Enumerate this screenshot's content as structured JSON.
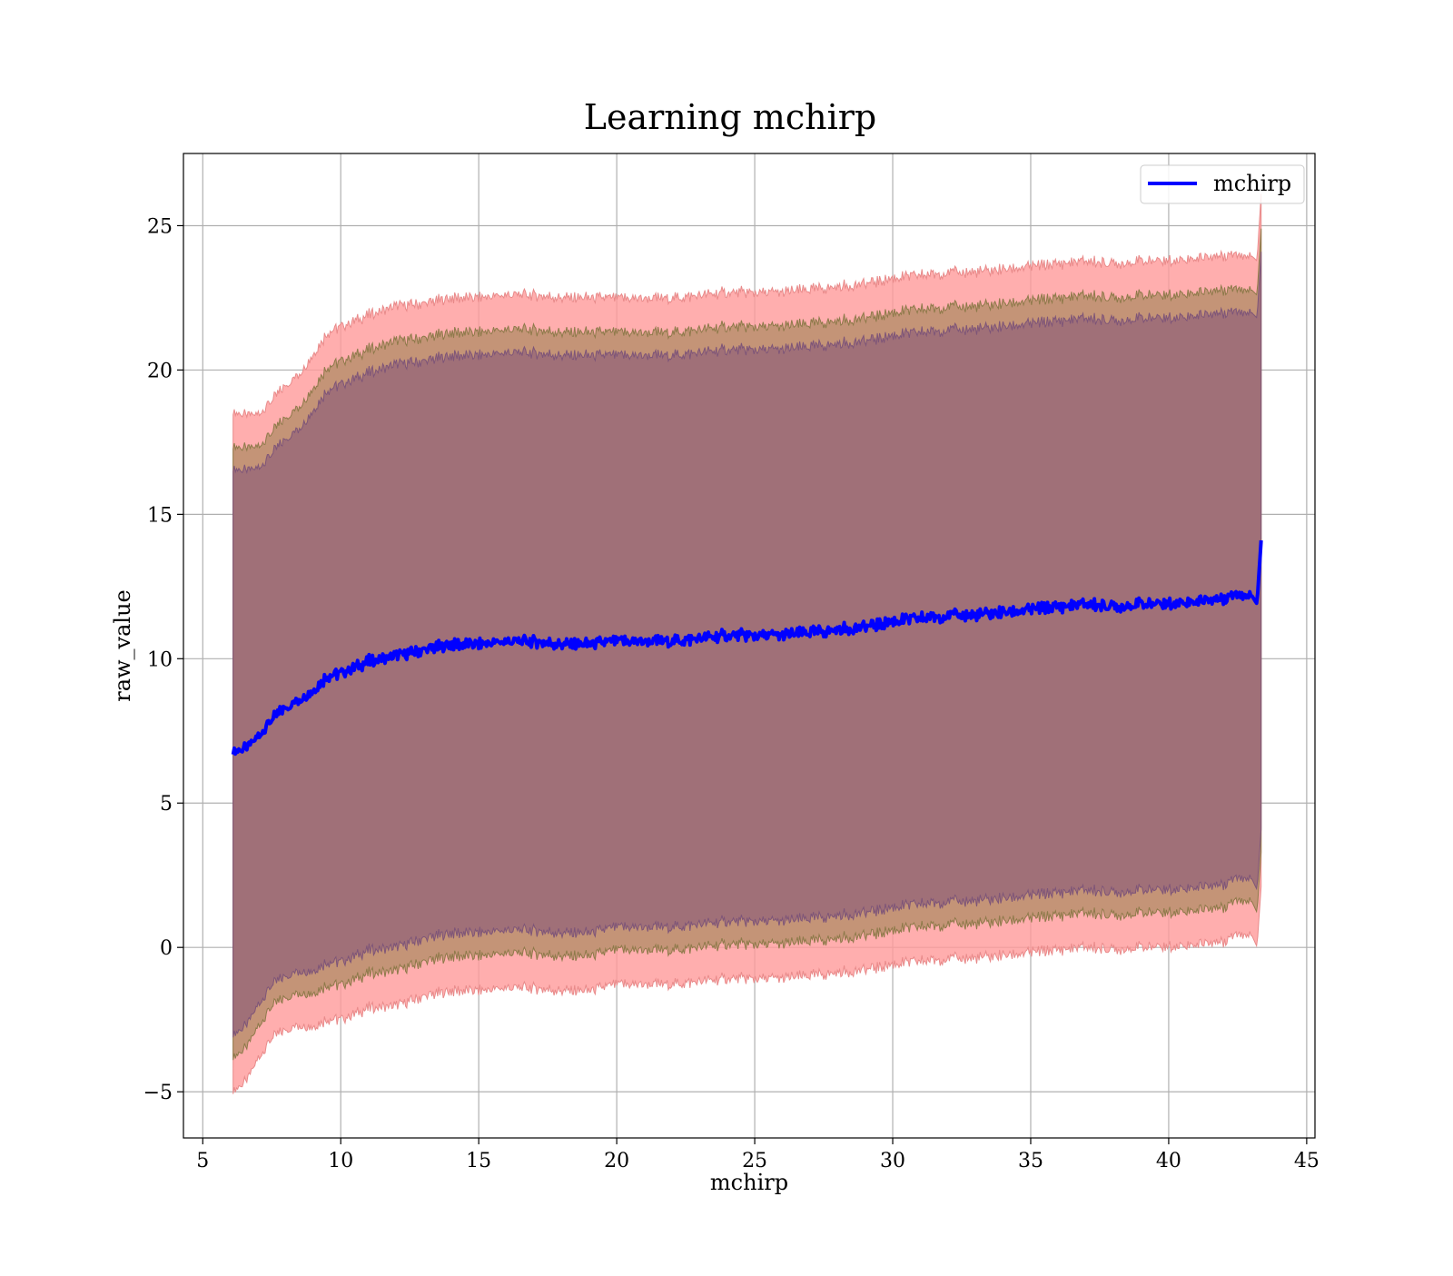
{
  "chart_data": {
    "type": "area",
    "title": "Learning mchirp",
    "xlabel": "mchirp",
    "ylabel": "raw_value",
    "xlim": [
      4.3,
      45.3
    ],
    "ylim": [
      -6.6,
      27.5
    ],
    "xticks": [
      5,
      10,
      15,
      20,
      25,
      30,
      35,
      40,
      45
    ],
    "yticks": [
      -5,
      0,
      5,
      10,
      15,
      20,
      25
    ],
    "xtick_labels": [
      "5",
      "10",
      "15",
      "20",
      "25",
      "30",
      "35",
      "40",
      "45"
    ],
    "ytick_labels": [
      "−5",
      "0",
      "5",
      "10",
      "15",
      "20",
      "25"
    ],
    "grid": true,
    "legend": {
      "position": "top-right",
      "entries": [
        "mchirp"
      ]
    },
    "colors": {
      "line": "#0000ff",
      "band_outer": "#ff9a9a",
      "band_middle": "#c49477",
      "band_inner": "#a07078",
      "band_outer_edge": "#e88a8a",
      "band_middle_edge": "#8e7a4a",
      "band_inner_edge": "#7e5578"
    },
    "x": [
      6.1,
      6.6,
      7.0,
      7.5,
      8.0,
      8.5,
      9.0,
      9.5,
      10.0,
      11.0,
      12.0,
      13.0,
      14.0,
      15.0,
      16.0,
      17.0,
      18.0,
      19.0,
      20.0,
      21.0,
      22.0,
      23.0,
      24.0,
      25.0,
      26.0,
      27.0,
      28.0,
      29.0,
      30.0,
      31.0,
      32.0,
      33.0,
      34.0,
      35.0,
      36.0,
      37.0,
      38.0,
      39.0,
      40.0,
      41.0,
      42.0,
      42.5,
      43.0,
      43.2,
      43.35
    ],
    "mean": [
      6.8,
      6.9,
      7.3,
      7.9,
      8.3,
      8.6,
      8.9,
      9.4,
      9.5,
      9.9,
      10.1,
      10.3,
      10.5,
      10.5,
      10.6,
      10.6,
      10.5,
      10.5,
      10.6,
      10.6,
      10.6,
      10.7,
      10.8,
      10.8,
      10.8,
      10.9,
      11.0,
      11.1,
      11.3,
      11.4,
      11.5,
      11.5,
      11.6,
      11.7,
      11.8,
      11.9,
      11.8,
      11.9,
      11.9,
      12.0,
      12.1,
      12.3,
      12.2,
      11.9,
      14.1
    ],
    "sigma": [
      9.8,
      9.6,
      9.3,
      9.2,
      9.3,
      9.4,
      9.7,
      9.9,
      10.0,
      10.0,
      10.1,
      10.0,
      10.0,
      10.0,
      10.0,
      10.0,
      10.0,
      10.0,
      9.9,
      9.9,
      9.9,
      9.9,
      9.9,
      9.9,
      9.9,
      9.9,
      9.9,
      9.9,
      9.9,
      9.9,
      9.9,
      9.9,
      9.9,
      9.9,
      9.9,
      9.9,
      9.9,
      9.9,
      9.9,
      9.9,
      9.9,
      9.8,
      9.8,
      9.9,
      10.0
    ],
    "band_multipliers": [
      1.0,
      1.08,
      1.2
    ]
  }
}
